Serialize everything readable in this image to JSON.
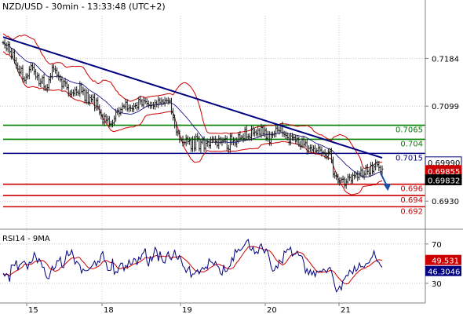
{
  "header": {
    "title": "NZD/USD - 30min - 13:33:48 (UTC+2)"
  },
  "rsi_panel": {
    "title": "RSI14 - 9MA",
    "ma_label": "49.531",
    "rsi_label": "46.3046",
    "ticks": [
      {
        "label": "70",
        "value": 70
      },
      {
        "label": "30",
        "value": 30
      }
    ]
  },
  "colors": {
    "price_bar": "#1a1a1a",
    "trendline": "#000080",
    "ma": "#000080",
    "bollinger": "#cc0000",
    "support": "#cc0000",
    "resistance": "#008000",
    "pivot": "#000080",
    "arrow": "#1f4fa8",
    "rsi": "#000080",
    "rsi_ma": "#cc0000",
    "grid": "#c8c8c8"
  },
  "chart_data": [
    {
      "type": "line",
      "symbol": "NZD/USD",
      "timeframe": "30min",
      "ylim": [
        0.688,
        0.726
      ],
      "grid": true,
      "x_ticks": [
        "15",
        "18",
        "19",
        "20",
        "21"
      ],
      "price_ticks": [
        "0.7184",
        "0.7099",
        "0.6930"
      ],
      "price_tick_values": [
        0.7184,
        0.7099,
        0.693
      ],
      "current_price_labels": [
        {
          "label": "0.69990",
          "value": 0.6999
        },
        {
          "label": "0.69855",
          "value": 0.69855
        },
        {
          "label": "0.69832",
          "value": 0.69832
        }
      ],
      "horizontal_levels": [
        {
          "label": "0.7065",
          "value": 0.7065,
          "role": "resistance"
        },
        {
          "label": "0.704",
          "value": 0.704,
          "role": "resistance"
        },
        {
          "label": "0.7015",
          "value": 0.7015,
          "role": "pivot"
        },
        {
          "label": "0.696",
          "value": 0.696,
          "role": "support"
        },
        {
          "label": "0.694",
          "value": 0.694,
          "role": "support"
        },
        {
          "label": "0.692",
          "value": 0.692,
          "role": "support"
        }
      ],
      "trendline": {
        "from": [
          0,
          0.7222
        ],
        "to": [
          232,
          0.7007
        ]
      },
      "forecast_arrow": {
        "from": [
          231,
          0.698
        ],
        "to": [
          235,
          0.6951
        ]
      },
      "close": [
        0.7212,
        0.7208,
        0.7201,
        0.7209,
        0.7196,
        0.7188,
        0.7195,
        0.718,
        0.7172,
        0.7165,
        0.7159,
        0.7166,
        0.7148,
        0.7145,
        0.7151,
        0.7153,
        0.7164,
        0.7171,
        0.7168,
        0.716,
        0.7151,
        0.7153,
        0.7139,
        0.7142,
        0.715,
        0.7133,
        0.713,
        0.7132,
        0.7146,
        0.7152,
        0.7168,
        0.7165,
        0.7163,
        0.7154,
        0.7151,
        0.7146,
        0.7134,
        0.7143,
        0.714,
        0.7132,
        0.7122,
        0.712,
        0.7123,
        0.7122,
        0.7128,
        0.7124,
        0.7122,
        0.7137,
        0.7125,
        0.7127,
        0.7109,
        0.7123,
        0.7106,
        0.7114,
        0.7111,
        0.7115,
        0.7096,
        0.7109,
        0.7098,
        0.7087,
        0.7082,
        0.707,
        0.7081,
        0.7074,
        0.7076,
        0.7067,
        0.7067,
        0.7069,
        0.7077,
        0.7088,
        0.7091,
        0.7086,
        0.7093,
        0.7099,
        0.7098,
        0.7106,
        0.7094,
        0.7096,
        0.7095,
        0.7094,
        0.7099,
        0.71,
        0.7097,
        0.7111,
        0.7108,
        0.7101,
        0.7109,
        0.7107,
        0.7104,
        0.7101,
        0.71,
        0.7101,
        0.7099,
        0.7105,
        0.7102,
        0.711,
        0.7105,
        0.7108,
        0.7105,
        0.7109,
        0.7109,
        0.7108,
        0.7108,
        0.709,
        0.7079,
        0.7065,
        0.7053,
        0.705,
        0.704,
        0.704,
        0.7034,
        0.7034,
        0.7042,
        0.7036,
        0.7038,
        0.7023,
        0.704,
        0.7024,
        0.7045,
        0.7042,
        0.7023,
        0.7035,
        0.7039,
        0.7024,
        0.7033,
        0.7035,
        0.7029,
        0.7039,
        0.704,
        0.704,
        0.7036,
        0.7029,
        0.7041,
        0.7035,
        0.7037,
        0.7039,
        0.7041,
        0.7024,
        0.7022,
        0.7046,
        0.7035,
        0.7038,
        0.7032,
        0.7037,
        0.7048,
        0.7042,
        0.7044,
        0.7041,
        0.7058,
        0.7044,
        0.7045,
        0.7043,
        0.7058,
        0.7051,
        0.7053,
        0.705,
        0.7056,
        0.7049,
        0.7061,
        0.705,
        0.7056,
        0.7042,
        0.7049,
        0.7034,
        0.7048,
        0.7048,
        0.705,
        0.706,
        0.7056,
        0.7055,
        0.7065,
        0.7051,
        0.7048,
        0.7047,
        0.7043,
        0.7035,
        0.7046,
        0.7043,
        0.7043,
        0.7037,
        0.7041,
        0.7031,
        0.7028,
        0.704,
        0.7031,
        0.7034,
        0.7019,
        0.7024,
        0.7025,
        0.7021,
        0.7024,
        0.7019,
        0.702,
        0.7025,
        0.7021,
        0.7016,
        0.7016,
        0.7012,
        0.7009,
        0.7017,
        0.7019,
        0.7003,
        0.6978,
        0.6975,
        0.6974,
        0.6964,
        0.6966,
        0.6969,
        0.6969,
        0.6958,
        0.6964,
        0.6973,
        0.6972,
        0.6966,
        0.6976,
        0.6975,
        0.6978,
        0.6972,
        0.6979,
        0.6985,
        0.6975,
        0.6978,
        0.699,
        0.6983,
        0.6979,
        0.6994,
        0.6983,
        0.6991,
        0.6998,
        0.6995,
        0.699,
        0.6982,
        0.6987
      ],
      "rsi14": [
        40.1,
        37.3,
        40.0,
        38.5,
        31.7,
        48.5,
        48.6,
        47.8,
        53.3,
        43.7,
        48.5,
        49.9,
        51.6,
        52.5,
        49.5,
        44.5,
        51.5,
        50.6,
        52.9,
        61.3,
        57.5,
        51.1,
        55.2,
        52.5,
        46.3,
        46.4,
        38.4,
        35.0,
        34.7,
        41.6,
        47.4,
        43.8,
        46.3,
        53.2,
        52.8,
        56.6,
        46.5,
        45.8,
        54.0,
        63.4,
        58.1,
        59.3,
        63.9,
        57.5,
        49.6,
        52.4,
        50.5,
        48.6,
        40.5,
        44.6,
        42.9,
        42.8,
        43.3,
        45.1,
        46.7,
        49.3,
        52.8,
        47.7,
        52.6,
        51.2,
        59.5,
        62.2,
        52.9,
        51.1,
        43.3,
        43.0,
        43.5,
        55.0,
        39.3,
        42.0,
        40.7,
        46.9,
        50.4,
        50.5,
        42.9,
        48.2,
        46.4,
        53.7,
        49.2,
        50.0,
        55.3,
        54.3,
        48.8,
        56.7,
        54.2,
        59.6,
        61.3,
        65.5,
        52.4,
        47.3,
        57.6,
        52.8,
        58.3,
        66.6,
        63.3,
        52.5,
        62.4,
        55.5,
        51.4,
        50.6,
        58.0,
        62.0,
        55.6,
        54.0,
        58.1,
        64.1,
        56.1,
        54.3,
        58.3,
        54.1,
        47.6,
        45.8,
        41.0,
        44.6,
        47.0,
        36.3,
        39.5,
        39.5,
        41.9,
        43.8,
        39.7,
        43.5,
        46.2,
        44.2,
        46.7,
        44.9,
        54.9,
        51.9,
        51.2,
        48.7,
        52.2,
        47.9,
        46.4,
        40.0,
        38.4,
        48.6,
        41.8,
        42.4,
        46.0,
        47.8,
        56.0,
        52.9,
        64.4,
        61.5,
        64.8,
        63.1,
        64.7,
        67.0,
        69.7,
        73.0,
        74.6,
        65.1,
        63.5,
        67.1,
        60.0,
        62.2,
        60.3,
        67.9,
        70.1,
        64.5,
        60.9,
        65.0,
        62.1,
        55.3,
        46.8,
        42.3,
        43.1,
        47.8,
        45.5,
        53.8,
        52.1,
        50.4,
        62.7,
        61.3,
        64.9,
        64.1,
        66.7,
        57.7,
        59.4,
        59.8,
        62.7,
        58.4,
        58.3,
        57.5,
        51.4,
        40.6,
        44.9,
        38.8,
        43.8,
        38.5,
        42.5,
        36.9,
        42.6,
        41.5,
        42.6,
        42.0,
        44.6,
        43.2,
        40.7,
        44.8,
        46.3,
        42.0,
        35.5,
        27.2,
        21.3,
        24.0,
        27.2,
        23.3,
        32.7,
        34.5,
        38.1,
        37.5,
        43.4,
        41.9,
        39.6,
        47.4,
        42.2,
        44.4,
        50.6,
        46.6,
        47.1,
        46.2,
        49.8,
        50.3,
        50.9,
        54.7,
        57.1,
        63.0,
        56.2,
        52.2,
        51.5,
        48.1,
        46.3
      ]
    }
  ]
}
